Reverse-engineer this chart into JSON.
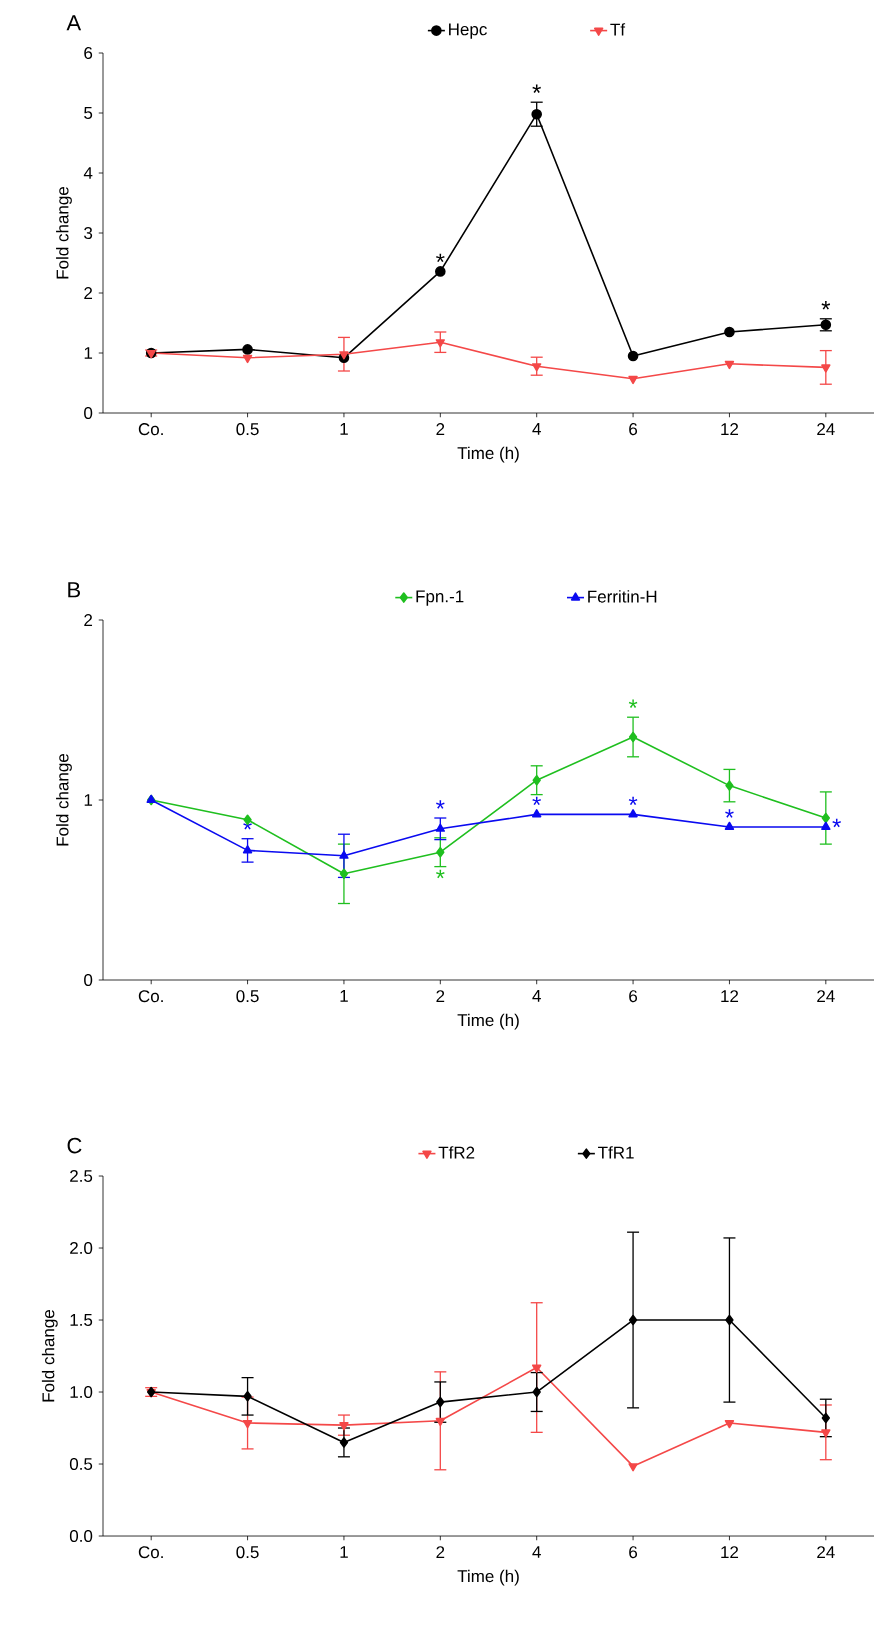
{
  "chart_data": [
    {
      "type": "line",
      "title": "A",
      "xlabel": "Time (h)",
      "ylabel": "Fold change",
      "categories": [
        "Co.",
        "0.5",
        "1",
        "2",
        "4",
        "6",
        "12",
        "24"
      ],
      "ylim": [
        0,
        6
      ],
      "yticks": [
        0,
        1,
        2,
        3,
        4,
        5,
        6
      ],
      "legend": "top",
      "series": [
        {
          "name": "Hepc",
          "color": "#000000",
          "marker": "circle",
          "values": [
            1,
            1.06,
            0.92,
            2.36,
            4.98,
            0.95,
            1.35,
            1.47
          ],
          "errors": [
            null,
            null,
            null,
            null,
            0.2,
            null,
            null,
            0.1
          ]
        },
        {
          "name": "Tf",
          "color": "#f44848",
          "marker": "triangle-down",
          "values": [
            1,
            0.92,
            0.98,
            1.18,
            0.78,
            0.57,
            0.82,
            0.76
          ],
          "errors": [
            0.05,
            null,
            0.28,
            0.17,
            0.15,
            null,
            null,
            0.28
          ]
        }
      ],
      "annotations": [
        {
          "text": "*",
          "x": "2",
          "y": 2.36
        },
        {
          "text": "*",
          "x": "4",
          "y": 4.98
        },
        {
          "text": "*",
          "x": "24",
          "y": 1.47
        }
      ]
    },
    {
      "type": "line",
      "title": "B",
      "xlabel": "Time (h)",
      "ylabel": "Fold change",
      "categories": [
        "Co.",
        "0.5",
        "1",
        "2",
        "4",
        "6",
        "12",
        "24"
      ],
      "ylim": [
        0,
        2
      ],
      "yticks": [
        0,
        1,
        2
      ],
      "legend": "top",
      "series": [
        {
          "name": "Fpn.-1",
          "color": "#1fbf1f",
          "marker": "diamond",
          "values": [
            1,
            0.89,
            0.59,
            0.71,
            1.11,
            1.35,
            1.08,
            0.9
          ],
          "errors": [
            null,
            null,
            0.165,
            0.08,
            0.08,
            0.11,
            0.09,
            0.145
          ]
        },
        {
          "name": "Ferritin-H",
          "color": "#0a0af0",
          "marker": "triangle",
          "values": [
            1,
            0.72,
            0.69,
            0.84,
            0.92,
            0.92,
            0.85,
            0.85
          ],
          "errors": [
            null,
            0.065,
            0.12,
            0.06,
            null,
            null,
            null,
            null
          ]
        }
      ],
      "annotations": [
        {
          "text": "*",
          "x": "0.5",
          "y": 0.72
        },
        {
          "text": "*",
          "x": "2",
          "y": 0.84
        },
        {
          "text": "*",
          "x": "4",
          "y": 0.92
        },
        {
          "text": "*",
          "x": "6",
          "y": 0.92
        },
        {
          "text": "*",
          "x": "12",
          "y": 0.85
        },
        {
          "text": "*",
          "x": "24",
          "y": 0.85
        },
        {
          "text": "*",
          "x": "2",
          "y": 0.71
        },
        {
          "text": "*",
          "x": "6",
          "y": 1.35
        }
      ]
    },
    {
      "type": "line",
      "title": "C",
      "xlabel": "Time (h)",
      "ylabel": "Fold change",
      "categories": [
        "Co.",
        "0.5",
        "1",
        "2",
        "4",
        "6",
        "12",
        "24"
      ],
      "ylim": [
        0,
        2.5
      ],
      "yticks": [
        {
          "value": 0,
          "label": "0.0"
        },
        {
          "value": 0.5,
          "label": "0.5"
        },
        {
          "value": 1,
          "label": "1.0"
        },
        {
          "value": 1.5,
          "label": "1.5"
        },
        {
          "value": 2,
          "label": "2.0"
        },
        {
          "value": 2.5,
          "label": "2.5"
        }
      ],
      "legend": "top",
      "series": [
        {
          "name": "TfR2",
          "color": "#f44848",
          "marker": "triangle-down",
          "values": [
            1,
            0.785,
            0.77,
            0.8,
            1.17,
            0.485,
            0.785,
            0.72
          ],
          "errors": [
            0.03,
            0.18,
            0.07,
            0.34,
            0.45,
            null,
            null,
            0.19
          ]
        },
        {
          "name": "TfR1",
          "color": "#000000",
          "marker": "diamond",
          "values": [
            1,
            0.97,
            0.65,
            0.93,
            1.0,
            1.5,
            1.5,
            0.82
          ],
          "errors": [
            null,
            0.13,
            0.1,
            0.14,
            0.135,
            0.61,
            0.57,
            0.13
          ]
        }
      ]
    }
  ]
}
